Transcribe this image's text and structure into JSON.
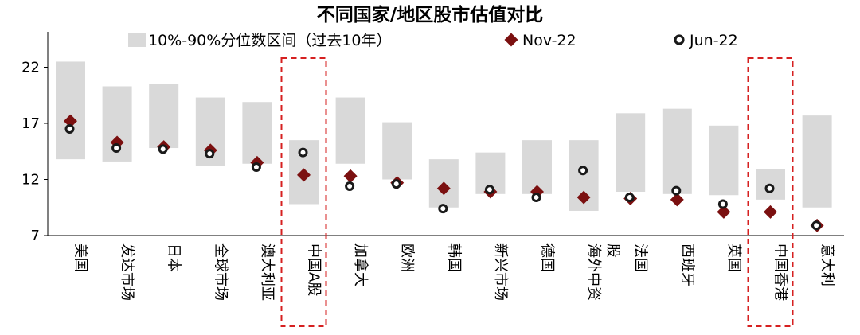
{
  "chart_data": {
    "type": "range-dot",
    "title": "不同国家/地区股市估值对比",
    "yticks": [
      7,
      12,
      17,
      22
    ],
    "ylim": [
      7,
      24.5
    ],
    "legend": {
      "range_label": "10%-90%分位数区间（过去10年）",
      "nov_label": "Nov-22",
      "jun_label": "Jun-22",
      "placement": "top"
    },
    "colors": {
      "range": "#d9d9d9",
      "nov": "#7b1010",
      "jun_fill": "#ffffff",
      "jun_stroke": "#1a1a1a",
      "highlight": "#d62020"
    },
    "categories": [
      "美国",
      "发达市场",
      "日本",
      "全球市场",
      "澳大利亚",
      "中国A股",
      "加拿大",
      "欧洲",
      "韩国",
      "新兴市场",
      "德国",
      "海外中资股",
      "法国",
      "西班牙",
      "英国",
      "中国香港",
      "意大利"
    ],
    "highlighted": [
      "中国A股",
      "中国香港"
    ],
    "range_low": [
      13.8,
      13.6,
      14.8,
      13.2,
      13.4,
      9.8,
      13.4,
      12.0,
      9.5,
      10.7,
      10.7,
      9.2,
      10.9,
      10.7,
      10.6,
      10.2,
      9.5
    ],
    "range_high": [
      22.5,
      20.3,
      20.5,
      19.3,
      18.9,
      15.5,
      19.3,
      17.1,
      13.8,
      14.4,
      15.5,
      15.5,
      17.9,
      18.3,
      16.8,
      12.9,
      17.7
    ],
    "nov_values": [
      17.2,
      15.3,
      14.9,
      14.6,
      13.5,
      12.4,
      12.3,
      11.7,
      11.2,
      10.9,
      10.9,
      10.4,
      10.3,
      10.2,
      9.1,
      9.1,
      7.9
    ],
    "jun_values": [
      16.5,
      14.8,
      14.7,
      14.3,
      13.1,
      14.4,
      11.4,
      11.6,
      9.4,
      11.1,
      10.4,
      12.8,
      10.4,
      11.0,
      9.8,
      11.2,
      7.9
    ]
  }
}
